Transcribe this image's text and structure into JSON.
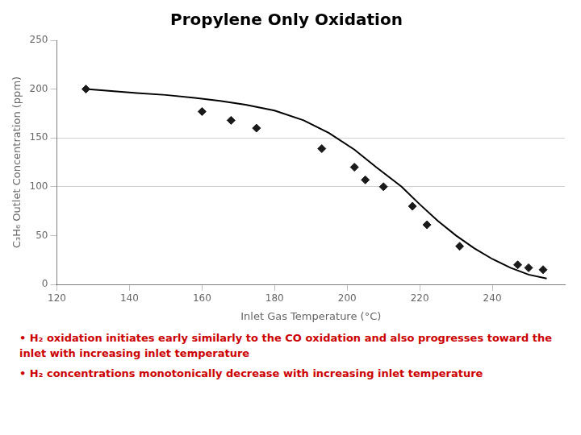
{
  "chart_data": {
    "type": "scatter",
    "title": "Propylene Only Oxidation",
    "xlabel": "Inlet Gas Temperature (°C)",
    "ylabel": "C₃H₆ Outlet Concentration (ppm)",
    "xlim": [
      120,
      260
    ],
    "ylim": [
      0,
      250
    ],
    "xticks": [
      120,
      140,
      160,
      180,
      200,
      220,
      240
    ],
    "yticks": [
      0,
      50,
      100,
      150,
      200,
      250
    ],
    "grid": [
      100,
      150
    ],
    "series": [
      {
        "type": "line",
        "color": "#000000",
        "x": [
          128,
          135,
          142,
          150,
          158,
          165,
          172,
          180,
          188,
          195,
          202,
          208,
          215,
          220,
          225,
          230,
          235,
          240,
          245,
          250,
          255
        ],
        "values": [
          200,
          198,
          196,
          194,
          191,
          188,
          184,
          178,
          168,
          155,
          138,
          120,
          100,
          82,
          65,
          50,
          37,
          26,
          17,
          10,
          6
        ]
      },
      {
        "type": "scatter",
        "marker": "diamond",
        "color": "#1a1a1a",
        "x": [
          128,
          160,
          168,
          175,
          193,
          202,
          205,
          210,
          218,
          222,
          231,
          247,
          250,
          254
        ],
        "values": [
          200,
          177,
          168,
          160,
          139,
          120,
          107,
          100,
          80,
          61,
          39,
          20,
          17,
          15
        ]
      }
    ],
    "annotations": [
      {
        "text": "• H₂ oxidation initiates early similarly to the CO oxidation and also progresses toward the inlet with increasing inlet temperature",
        "color": "#cc0000"
      },
      {
        "text": "• H₂ concentrations monotonically decrease with increasing inlet temperature",
        "color": "#cc0000"
      }
    ]
  }
}
